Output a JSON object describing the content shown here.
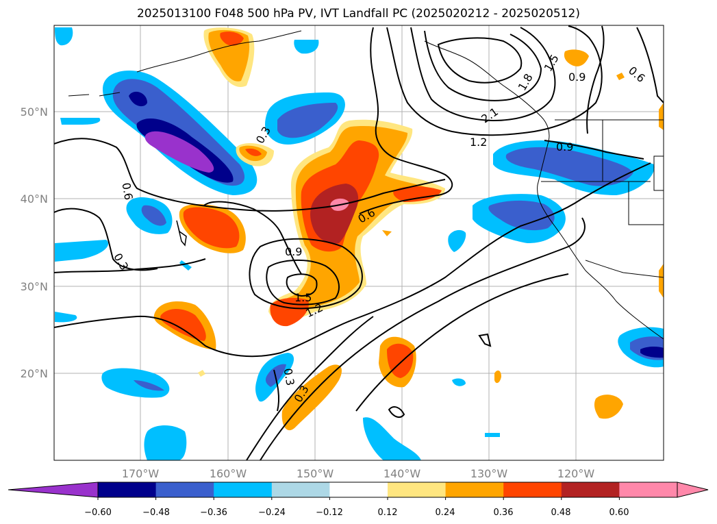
{
  "title": "2025013100 F048 500 hPa PV, IVT Landfall PC (2025020212 - 2025020512)",
  "map": {
    "lat_labels": [
      "50°N",
      "40°N",
      "30°N",
      "20°N"
    ],
    "lon_labels": [
      "170°W",
      "160°W",
      "150°W",
      "140°W",
      "130°W",
      "120°W"
    ]
  },
  "contour_labels": [
    "0.3",
    "0.3",
    "0.3",
    "0.3",
    "0.6",
    "0.6",
    "0.6",
    "0.9",
    "0.9",
    "0.9",
    "1.2",
    "1.2",
    "1.5",
    "1.5",
    "1.8",
    "2.1"
  ],
  "colorbar": {
    "ticks": [
      "−0.60",
      "−0.48",
      "−0.36",
      "−0.24",
      "−0.12",
      "0.12",
      "0.24",
      "0.36",
      "0.48",
      "0.60"
    ],
    "colors": [
      "#9932cc",
      "#00008b",
      "#3a5fcd",
      "#00bfff",
      "#add8e6",
      "#ffffff",
      "#ffe680",
      "#ffa500",
      "#ff4500",
      "#b22222",
      "#ff88aa",
      "#ff88aa"
    ]
  }
}
